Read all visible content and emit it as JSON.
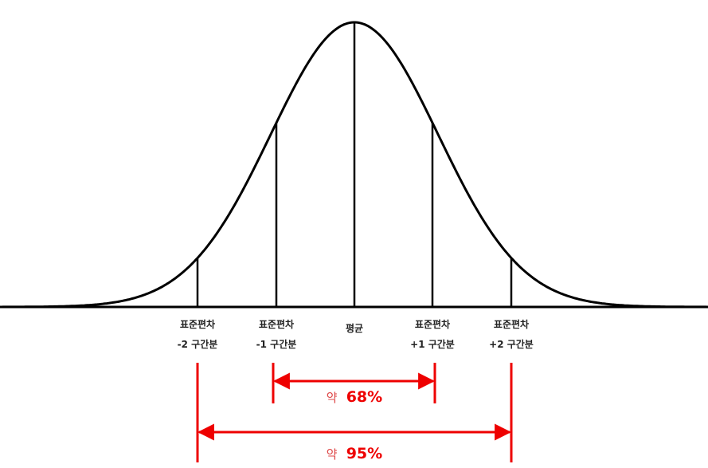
{
  "labels": [
    {
      "line1": "표준편차",
      "line2": "-2 구간분"
    },
    {
      "line1": "표준편차",
      "line2": "-1 구간분"
    },
    {
      "line1": "평균"
    },
    {
      "line1": "표준편차",
      "line2": "+1 구간분"
    },
    {
      "line1": "표준편차",
      "line2": "+2 구간분"
    }
  ],
  "ranges": [
    {
      "prefix": "약",
      "value": "68%"
    },
    {
      "prefix": "약",
      "value": "95%"
    }
  ]
}
